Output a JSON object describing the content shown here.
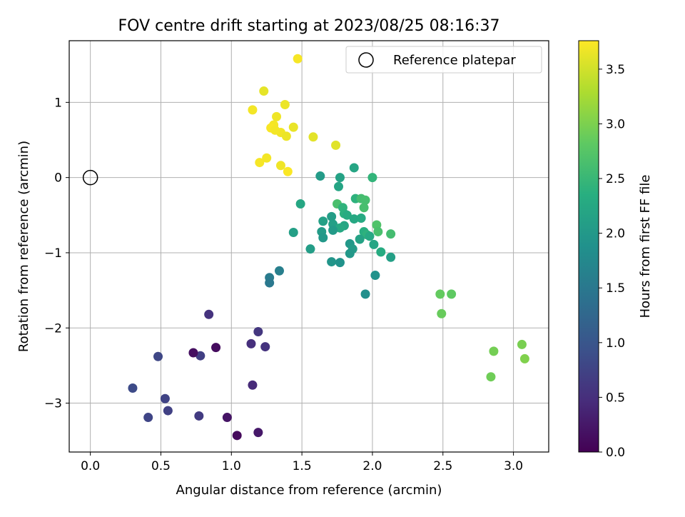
{
  "chart_data": {
    "type": "scatter",
    "title": "FOV centre drift starting at 2023/08/25 08:16:37",
    "xlabel": "Angular distance from reference (arcmin)",
    "ylabel": "Rotation from reference (arcmin)",
    "xlim": [
      -0.15,
      3.25
    ],
    "ylim": [
      -3.65,
      1.82
    ],
    "xticks": [
      0.0,
      0.5,
      1.0,
      1.5,
      2.0,
      2.5,
      3.0
    ],
    "xtick_labels": [
      "0.0",
      "0.5",
      "1.0",
      "1.5",
      "2.0",
      "2.5",
      "3.0"
    ],
    "yticks": [
      -3,
      -2,
      -1,
      0,
      1
    ],
    "ytick_labels": [
      "−3",
      "−2",
      "−1",
      "0",
      "1"
    ],
    "grid": true,
    "legend": {
      "position": "top-right",
      "entries": [
        "Reference platepar"
      ]
    },
    "colorbar": {
      "label": "Hours from first FF file",
      "range": [
        0.0,
        3.76
      ],
      "colormap": "viridis",
      "ticks": [
        0.0,
        0.5,
        1.0,
        1.5,
        2.0,
        2.5,
        3.0,
        3.5
      ],
      "tick_labels": [
        "0.0",
        "0.5",
        "1.0",
        "1.5",
        "2.0",
        "2.5",
        "3.0",
        "3.5"
      ]
    },
    "reference_point": {
      "x": 0.0,
      "y": 0.0
    },
    "points": [
      [
        1.47,
        1.58,
        3.72
      ],
      [
        1.23,
        1.15,
        3.62
      ],
      [
        1.38,
        0.97,
        3.66
      ],
      [
        1.15,
        0.9,
        3.7
      ],
      [
        1.32,
        0.81,
        3.68
      ],
      [
        1.3,
        0.7,
        3.71
      ],
      [
        1.28,
        0.66,
        3.73
      ],
      [
        1.44,
        0.67,
        3.64
      ],
      [
        1.35,
        0.6,
        3.69
      ],
      [
        1.31,
        0.63,
        3.7
      ],
      [
        1.39,
        0.55,
        3.66
      ],
      [
        1.58,
        0.54,
        3.61
      ],
      [
        1.74,
        0.43,
        3.59
      ],
      [
        1.25,
        0.26,
        3.7
      ],
      [
        1.2,
        0.2,
        3.72
      ],
      [
        1.35,
        0.16,
        3.68
      ],
      [
        1.4,
        0.08,
        3.74
      ],
      [
        1.63,
        0.02,
        2.05
      ],
      [
        1.77,
        0.0,
        2.15
      ],
      [
        1.87,
        0.13,
        2.2
      ],
      [
        2.0,
        0.0,
        2.45
      ],
      [
        1.76,
        -0.12,
        2.18
      ],
      [
        1.49,
        -0.35,
        2.22
      ],
      [
        1.75,
        -0.35,
        2.65
      ],
      [
        1.88,
        -0.28,
        2.4
      ],
      [
        1.92,
        -0.28,
        2.6
      ],
      [
        1.95,
        -0.3,
        2.62
      ],
      [
        1.94,
        -0.4,
        2.63
      ],
      [
        1.79,
        -0.4,
        2.42
      ],
      [
        1.8,
        -0.48,
        2.38
      ],
      [
        1.82,
        -0.5,
        2.3
      ],
      [
        1.87,
        -0.55,
        2.25
      ],
      [
        1.92,
        -0.54,
        2.28
      ],
      [
        1.65,
        -0.58,
        2.12
      ],
      [
        1.72,
        -0.62,
        2.1
      ],
      [
        1.8,
        -0.64,
        2.2
      ],
      [
        1.71,
        -0.52,
        2.08
      ],
      [
        1.77,
        -0.67,
        2.25
      ],
      [
        1.64,
        -0.72,
        2.05
      ],
      [
        1.72,
        -0.7,
        2.02
      ],
      [
        1.65,
        -0.8,
        2.0
      ],
      [
        1.94,
        -0.72,
        2.35
      ],
      [
        1.96,
        -0.76,
        2.4
      ],
      [
        1.98,
        -0.78,
        2.25
      ],
      [
        1.91,
        -0.82,
        2.15
      ],
      [
        2.03,
        -0.63,
        2.7
      ],
      [
        2.04,
        -0.72,
        2.65
      ],
      [
        2.13,
        -0.75,
        2.6
      ],
      [
        1.44,
        -0.73,
        2.1
      ],
      [
        1.84,
        -0.88,
        2.0
      ],
      [
        1.86,
        -0.95,
        2.05
      ],
      [
        1.84,
        -1.01,
        2.0
      ],
      [
        1.56,
        -0.95,
        2.08
      ],
      [
        2.01,
        -0.89,
        2.2
      ],
      [
        2.06,
        -0.99,
        2.3
      ],
      [
        2.13,
        -1.06,
        2.1
      ],
      [
        1.71,
        -1.12,
        1.95
      ],
      [
        1.77,
        -1.13,
        1.9
      ],
      [
        2.02,
        -1.3,
        1.9
      ],
      [
        1.95,
        -1.55,
        1.85
      ],
      [
        1.34,
        -1.24,
        1.6
      ],
      [
        1.27,
        -1.33,
        1.55
      ],
      [
        1.27,
        -1.4,
        1.5
      ],
      [
        2.48,
        -1.55,
        2.85
      ],
      [
        2.56,
        -1.55,
        2.82
      ],
      [
        2.49,
        -1.81,
        2.88
      ],
      [
        2.86,
        -2.31,
        2.95
      ],
      [
        2.84,
        -2.65,
        2.92
      ],
      [
        3.06,
        -2.22,
        2.98
      ],
      [
        3.08,
        -2.41,
        3.02
      ],
      [
        0.84,
        -1.82,
        0.55
      ],
      [
        1.19,
        -2.05,
        0.6
      ],
      [
        1.14,
        -2.21,
        0.5
      ],
      [
        1.24,
        -2.25,
        0.55
      ],
      [
        0.48,
        -2.38,
        0.8
      ],
      [
        0.78,
        -2.37,
        0.7
      ],
      [
        0.73,
        -2.33,
        0.15
      ],
      [
        0.89,
        -2.26,
        0.12
      ],
      [
        1.15,
        -2.76,
        0.45
      ],
      [
        0.3,
        -2.8,
        0.85
      ],
      [
        0.53,
        -2.94,
        0.75
      ],
      [
        0.55,
        -3.1,
        0.72
      ],
      [
        0.41,
        -3.19,
        0.78
      ],
      [
        0.77,
        -3.17,
        0.65
      ],
      [
        0.97,
        -3.19,
        0.2
      ],
      [
        1.04,
        -3.43,
        0.1
      ],
      [
        1.19,
        -3.39,
        0.25
      ]
    ]
  }
}
